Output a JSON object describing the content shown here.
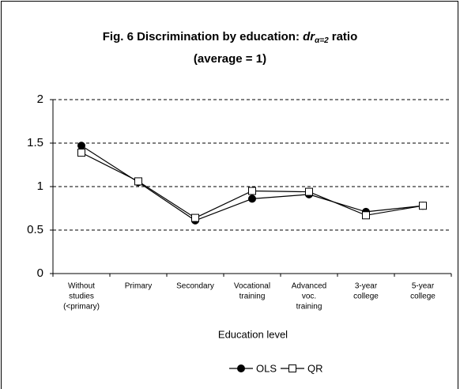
{
  "chart_data": {
    "type": "line",
    "title_parts": [
      "Fig. 6 Discrimination by education:",
      "dr",
      "α=2",
      "ratio"
    ],
    "subtitle": "(average = 1)",
    "x_label": "Education level",
    "categories": [
      [
        "Without",
        "studies",
        "(<primary)"
      ],
      [
        "Primary"
      ],
      [
        "Secondary"
      ],
      [
        "Vocational",
        "training"
      ],
      [
        "Advanced",
        "voc.",
        "training"
      ],
      [
        "3-year",
        "college"
      ],
      [
        "5-year",
        "college"
      ]
    ],
    "series": [
      {
        "name": "OLS",
        "color": "#000000",
        "marker": "filled-circle",
        "values": [
          1.47,
          1.05,
          0.61,
          0.86,
          0.91,
          0.71,
          0.78
        ]
      },
      {
        "name": "QR",
        "color": "#000000",
        "marker": "open-square",
        "values": [
          1.39,
          1.06,
          0.64,
          0.95,
          0.94,
          0.67,
          0.78
        ]
      }
    ],
    "ylim": [
      0,
      2
    ],
    "yticks": [
      0,
      0.5,
      1,
      1.5,
      2
    ],
    "grid": true,
    "legend": "bottom"
  }
}
